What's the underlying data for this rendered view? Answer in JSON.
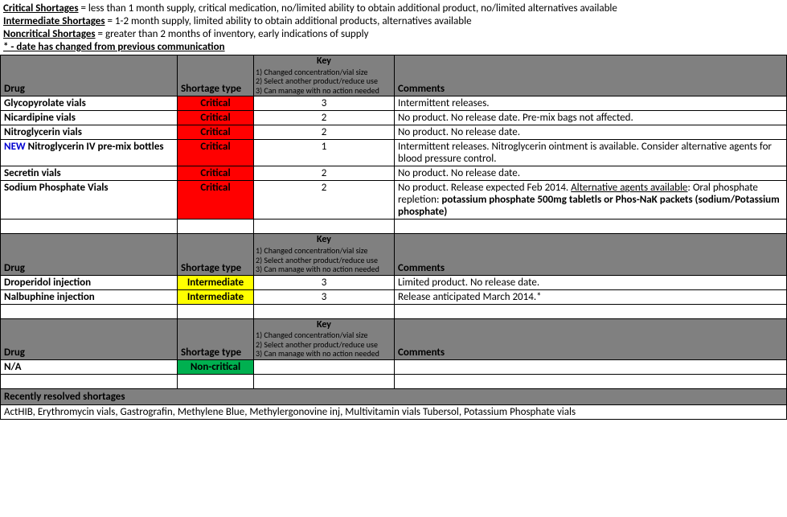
{
  "definitions": [
    {
      "term": "Critical Shortages",
      "text": "= less than 1 month supply, critical medication, no/limited ability to obtain additional product, no/limited alternatives available"
    },
    {
      "term": "Intermediate Shortages",
      "text": "= 1-2 month supply, limited ability to obtain additional products, alternatives available"
    },
    {
      "term": "Noncritical Shortages",
      "text": "= greater than 2 months of inventory, early indications of supply"
    }
  ],
  "star_note": "* - date has changed from previous communication",
  "header": {
    "drug": "Drug",
    "shortage_type": "Shortage type",
    "key_title": "Key",
    "key_lines": [
      "1) Changed concentration/vial size",
      "2) Select another product/reduce use",
      "3) Can manage with no action needed"
    ],
    "comments": "Comments"
  },
  "colors": {
    "critical": "#ff0000",
    "intermediate": "#ffff00",
    "noncritical": "#00b050",
    "header_bg": "#808080",
    "new_flag": "#0000d0"
  },
  "sections": {
    "critical": {
      "rows": [
        {
          "drug_html": "Glycopyrolate vials",
          "shortage": "Critical",
          "key": "3",
          "comment_html": "Intermittent releases."
        },
        {
          "drug_html": "Nicardipine vials",
          "shortage": "Critical",
          "key": "2",
          "comment_html": "No product. No release date.  Pre-mix bags not affected."
        },
        {
          "drug_html": "Nitroglycerin vials",
          "shortage": "Critical",
          "key": "2",
          "comment_html": "No product.  No release date."
        },
        {
          "drug_html": "<span class=\"new-flag\">NEW</span> Nitroglycerin IV pre-mix bottles",
          "shortage": "Critical",
          "key": "1",
          "comment_html": "Intermittent releases.  Nitroglycerin ointment is available.  Consider alternative agents for blood pressure control."
        },
        {
          "drug_html": "Secretin vials",
          "shortage": "Critical",
          "key": "2",
          "comment_html": "No product.  No release date."
        },
        {
          "drug_html": "Sodium Phosphate Vials",
          "shortage": "Critical",
          "key": "2",
          "comment_html": "No product.  Release expected Feb 2014.  <span class=\"alt-underline\">Alternative agents available</span>:  Oral phosphate repletion:  <span class=\"bold\">potassium phosphate 500mg tabletls or Phos-NaK packets (sodium/Potassium phosphate)</span>"
        }
      ]
    },
    "intermediate": {
      "rows": [
        {
          "drug_html": "Droperidol injection",
          "shortage": "Intermediate",
          "key": "3",
          "comment_html": "Limited product. No release date."
        },
        {
          "drug_html": "Nalbuphine injection",
          "shortage": "Intermediate",
          "key": "3",
          "comment_html": "Release anticipated March 2014.*"
        }
      ]
    },
    "noncritical": {
      "rows": [
        {
          "drug_html": "N/A",
          "shortage": "Non-critical",
          "key": "",
          "comment_html": ""
        }
      ]
    }
  },
  "resolved": {
    "title": "Recently resolved shortages",
    "text": "ActHIB, Erythromycin vials, Gastrografin, Methylene Blue, Methylergonovine inj, Multivitamin vials Tubersol, Potassium Phosphate vials"
  }
}
